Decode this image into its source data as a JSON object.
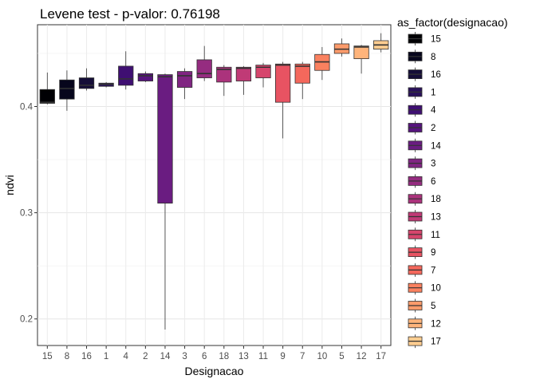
{
  "chart_data": {
    "type": "boxplot",
    "title": "Levene test - p-valor:  0.76198",
    "xlabel": "Designacao",
    "ylabel": "ndvi",
    "categories": [
      "15",
      "8",
      "16",
      "1",
      "4",
      "2",
      "14",
      "3",
      "6",
      "18",
      "13",
      "11",
      "9",
      "7",
      "10",
      "5",
      "12",
      "17"
    ],
    "ylim": [
      0.175,
      0.477
    ],
    "yticks": [
      0.2,
      0.3,
      0.4
    ],
    "ytick_labels": [
      "0.2",
      "0.3",
      "0.4"
    ],
    "grid": true,
    "legend": {
      "title": "as_factor(designacao)",
      "position": "right",
      "entries": [
        "15",
        "8",
        "16",
        "1",
        "4",
        "2",
        "14",
        "3",
        "6",
        "18",
        "13",
        "11",
        "9",
        "7",
        "10",
        "5",
        "12",
        "17"
      ]
    },
    "series": [
      {
        "category": "15",
        "color": "#000004",
        "whisker_low": 0.402,
        "q1": 0.403,
        "median": 0.404,
        "q3": 0.416,
        "whisker_high": 0.432
      },
      {
        "category": "8",
        "color": "#07061c",
        "whisker_low": 0.396,
        "q1": 0.407,
        "median": 0.417,
        "q3": 0.425,
        "whisker_high": 0.434
      },
      {
        "category": "16",
        "color": "#150e38",
        "whisker_low": 0.415,
        "q1": 0.417,
        "median": 0.42,
        "q3": 0.427,
        "whisker_high": 0.436
      },
      {
        "category": "1",
        "color": "#29115a",
        "whisker_low": 0.418,
        "q1": 0.419,
        "median": 0.421,
        "q3": 0.422,
        "whisker_high": 0.423
      },
      {
        "category": "4",
        "color": "#3f0f72",
        "whisker_low": 0.416,
        "q1": 0.42,
        "median": 0.426,
        "q3": 0.438,
        "whisker_high": 0.452
      },
      {
        "category": "2",
        "color": "#56147d",
        "whisker_low": 0.423,
        "q1": 0.424,
        "median": 0.429,
        "q3": 0.431,
        "whisker_high": 0.433
      },
      {
        "category": "14",
        "color": "#6a1c81",
        "whisker_low": 0.19,
        "q1": 0.309,
        "median": 0.428,
        "q3": 0.43,
        "whisker_high": 0.431
      },
      {
        "category": "3",
        "color": "#802582",
        "whisker_low": 0.407,
        "q1": 0.418,
        "median": 0.429,
        "q3": 0.433,
        "whisker_high": 0.436
      },
      {
        "category": "6",
        "color": "#952c80",
        "whisker_low": 0.424,
        "q1": 0.427,
        "median": 0.431,
        "q3": 0.444,
        "whisker_high": 0.457
      },
      {
        "category": "18",
        "color": "#ab337c",
        "whisker_low": 0.41,
        "q1": 0.423,
        "median": 0.435,
        "q3": 0.437,
        "whisker_high": 0.439
      },
      {
        "category": "13",
        "color": "#c03a76",
        "whisker_low": 0.411,
        "q1": 0.424,
        "median": 0.436,
        "q3": 0.437,
        "whisker_high": 0.438
      },
      {
        "category": "11",
        "color": "#d6456c",
        "whisker_low": 0.418,
        "q1": 0.427,
        "median": 0.437,
        "q3": 0.439,
        "whisker_high": 0.441
      },
      {
        "category": "9",
        "color": "#e85362",
        "whisker_low": 0.37,
        "q1": 0.404,
        "median": 0.439,
        "q3": 0.44,
        "whisker_high": 0.442
      },
      {
        "category": "7",
        "color": "#f4685c",
        "whisker_low": 0.407,
        "q1": 0.422,
        "median": 0.438,
        "q3": 0.44,
        "whisker_high": 0.442
      },
      {
        "category": "10",
        "color": "#fa815f",
        "whisker_low": 0.425,
        "q1": 0.434,
        "median": 0.442,
        "q3": 0.449,
        "whisker_high": 0.456
      },
      {
        "category": "5",
        "color": "#fd9b6b",
        "whisker_low": 0.447,
        "q1": 0.45,
        "median": 0.454,
        "q3": 0.459,
        "whisker_high": 0.464
      },
      {
        "category": "12",
        "color": "#feb47b",
        "whisker_low": 0.431,
        "q1": 0.445,
        "median": 0.456,
        "q3": 0.457,
        "whisker_high": 0.458
      },
      {
        "category": "17",
        "color": "#fecd90",
        "whisker_low": 0.451,
        "q1": 0.454,
        "median": 0.458,
        "q3": 0.462,
        "whisker_high": 0.469
      }
    ]
  }
}
